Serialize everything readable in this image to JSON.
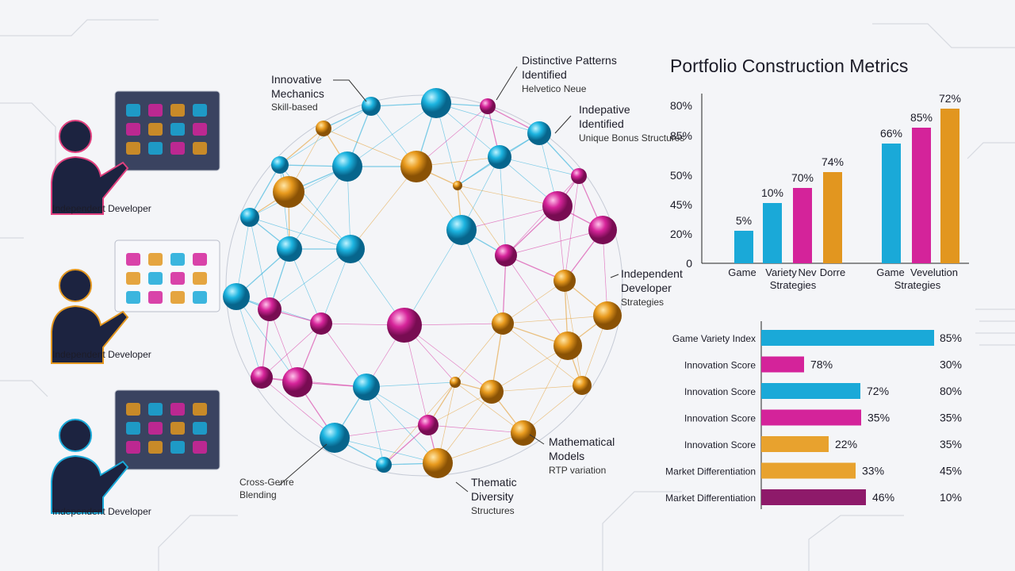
{
  "developers": [
    {
      "label": "Independent Developer"
    },
    {
      "label": "Independent Developer"
    },
    {
      "label": "Independent Developer"
    }
  ],
  "network_labels": [
    {
      "title": [
        "Innovative",
        "Mechanics"
      ],
      "sub": "Skill-based"
    },
    {
      "title": [
        "Distinctive Patterns",
        "Identified"
      ],
      "sub": "Helvetico Neue"
    },
    {
      "title": [
        "Indepative",
        "Identified"
      ],
      "sub": "Unique Bonus Structures"
    },
    {
      "title": [
        "Independent",
        "Developer"
      ],
      "sub": "Strategies"
    },
    {
      "title": [
        "Mathematical",
        "Models"
      ],
      "sub": "RTP variation"
    },
    {
      "title": [
        "Thematic",
        "Diversity"
      ],
      "sub": "Structures"
    },
    {
      "title": [
        "Cross-Genre",
        "Blending"
      ]
    }
  ],
  "metrics": {
    "title": "Portfolio Construction Metrics",
    "column_chart": {
      "y_labels": [
        "80%",
        "85%",
        "50%",
        "45%",
        "20%",
        "0"
      ],
      "bar_labels": [
        "5%",
        "10%",
        "70%",
        "74%",
        "66%",
        "85%",
        "72%"
      ],
      "x_labels": [
        "Game",
        "Variety",
        "Nev",
        "Dorre",
        "Game",
        "Vevelution"
      ],
      "group_labels": [
        "Strategies",
        "Strategies"
      ]
    },
    "bar_chart": {
      "rows": [
        {
          "label": "Game Variety Index",
          "right": "85%"
        },
        {
          "label": "Innovation Score",
          "value": "78%",
          "right": "30%"
        },
        {
          "label": "Innovation Score",
          "value": "72%",
          "right": "80%"
        },
        {
          "label": "Innovation Score",
          "value": "35%",
          "right": "35%"
        },
        {
          "label": "Innovation Score",
          "value": "22%",
          "right": "35%"
        },
        {
          "label": "Market Differentiation",
          "value": "33%",
          "right": "45%"
        },
        {
          "label": "Market Differentiation",
          "value": "46%",
          "right": "10%"
        }
      ]
    }
  }
}
